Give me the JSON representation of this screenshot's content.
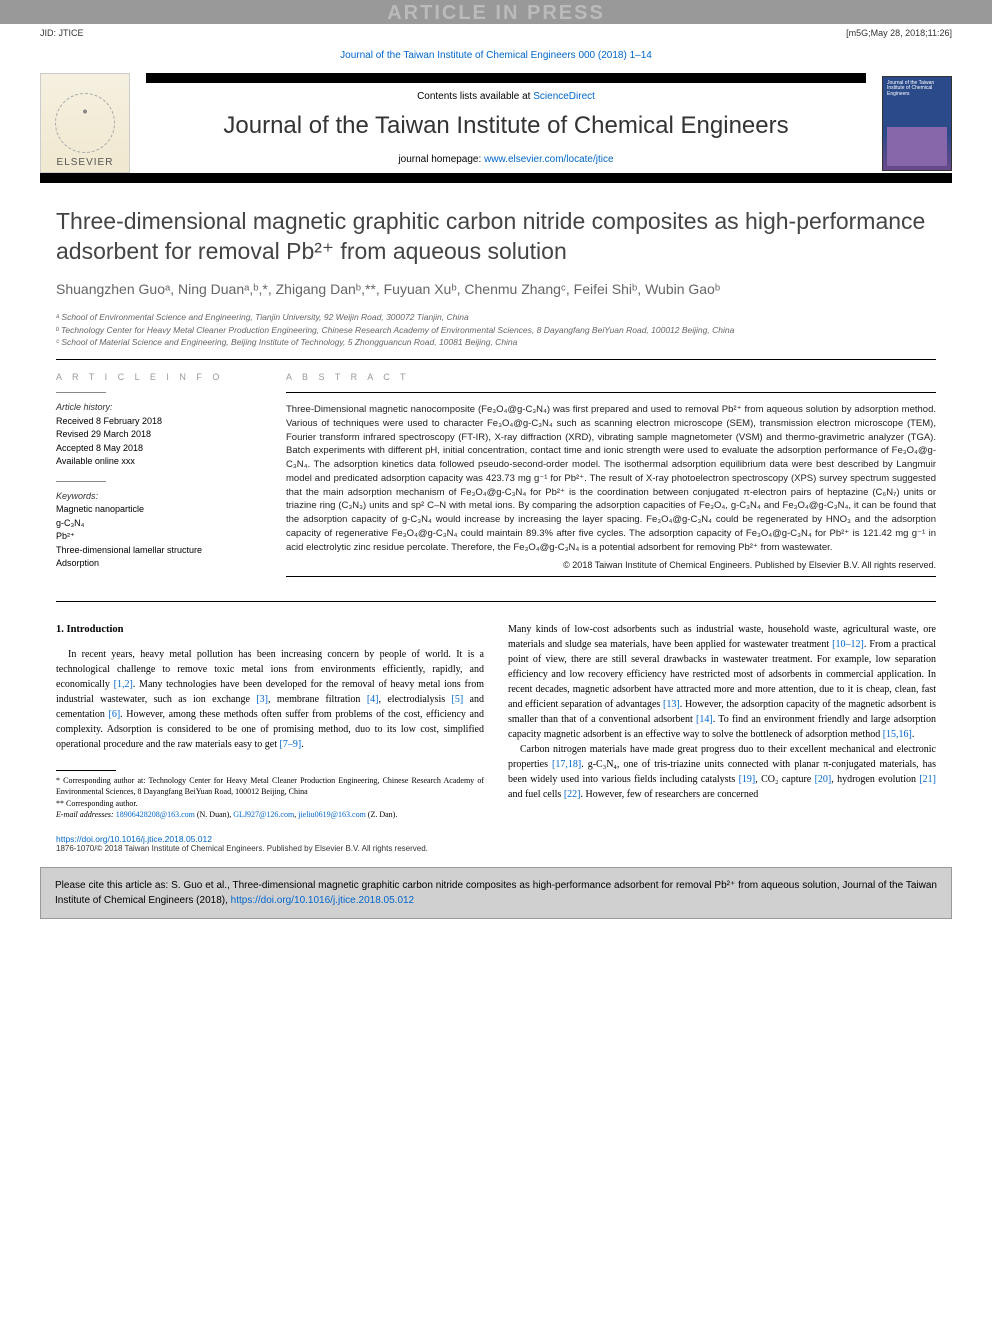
{
  "header": {
    "aip_banner": "ARTICLE IN PRESS",
    "jid": "JID: JTICE",
    "stamp": "[m5G;May 28, 2018;11:26]",
    "journal_ref": "Journal of the Taiwan Institute of Chemical Engineers 000 (2018) 1–14"
  },
  "masthead": {
    "contents_prefix": "Contents lists available at ",
    "contents_link": "ScienceDirect",
    "journal_name": "Journal of the Taiwan Institute of Chemical Engineers",
    "homepage_prefix": "journal homepage: ",
    "homepage_url": "www.elsevier.com/locate/jtice",
    "elsevier_label": "ELSEVIER"
  },
  "article": {
    "title_html": "Three-dimensional magnetic graphitic carbon nitride composites as high-performance adsorbent for removal Pb²⁺ from aqueous solution",
    "authors_html": "Shuangzhen Guoᵃ, Ning Duanᵃ,ᵇ,*, Zhigang Danᵇ,**, Fuyuan Xuᵇ, Chenmu Zhangᶜ, Feifei Shiᵇ, Wubin Gaoᵇ",
    "affiliations": {
      "a": "ᵃ School of Environmental Science and Engineering, Tianjin University, 92 Weijin Road, 300072 Tianjin, China",
      "b": "ᵇ Technology Center for Heavy Metal Cleaner Production Engineering, Chinese Research Academy of Environmental Sciences, 8 Dayangfang BeiYuan Road, 100012 Beijing, China",
      "c": "ᶜ School of Material Science and Engineering, Beijing Institute of Technology, 5 Zhongguancun Road, 10081 Beijing, China"
    }
  },
  "info": {
    "heading": "A R T I C L E   I N F O",
    "history_label": "Article history:",
    "history": {
      "received": "Received 8 February 2018",
      "revised": "Revised 29 March 2018",
      "accepted": "Accepted 8 May 2018",
      "online": "Available online xxx"
    },
    "keywords_label": "Keywords:",
    "keywords": [
      "Magnetic nanoparticle",
      "g-C₃N₄",
      "Pb²⁺",
      "Three-dimensional lamellar structure",
      "Adsorption"
    ]
  },
  "abstract": {
    "heading": "A B S T R A C T",
    "text": "Three-Dimensional magnetic nanocomposite (Fe₃O₄@g-C₃N₄) was first prepared and used to removal Pb²⁺ from aqueous solution by adsorption method. Various of techniques were used to character Fe₃O₄@g-C₃N₄ such as scanning electron microscope (SEM), transmission electron microscope (TEM), Fourier transform infrared spectroscopy (FT-IR), X-ray diffraction (XRD), vibrating sample magnetometer (VSM) and thermo-gravimetric analyzer (TGA). Batch experiments with different pH, initial concentration, contact time and ionic strength were used to evaluate the adsorption performance of Fe₃O₄@g-C₃N₄. The adsorption kinetics data followed pseudo-second-order model. The isothermal adsorption equilibrium data were best described by Langmuir model and predicated adsorption capacity was 423.73 mg g⁻¹ for Pb²⁺. The result of X-ray photoelectron spectroscopy (XPS) survey spectrum suggested that the main adsorption mechanism of Fe₃O₄@g-C₃N₄ for Pb²⁺ is the coordination between conjugated π-electron pairs of heptazine (C₆N₇) units or triazine ring (C₃N₃) units and sp² C–N with metal ions. By comparing the adsorption capacities of Fe₃O₄, g-C₃N₄ and Fe₃O₄@g-C₃N₄, it can be found that the adsorption capacity of g-C₃N₄ would increase by increasing the layer spacing. Fe₃O₄@g-C₃N₄ could be regenerated by HNO₃ and the adsorption capacity of regenerative Fe₃O₄@g-C₃N₄ could maintain 89.3% after five cycles. The adsorption capacity of Fe₃O₄@g-C₃N₄ for Pb²⁺ is 121.42 mg g⁻¹ in acid electrolytic zinc residue percolate. Therefore, the Fe₃O₄@g-C₃N₄ is a potential adsorbent for removing Pb²⁺ from wastewater.",
    "copyright": "© 2018 Taiwan Institute of Chemical Engineers. Published by Elsevier B.V. All rights reserved."
  },
  "body": {
    "section_number": "1.",
    "section_title": "Introduction",
    "col1_p1": "In recent years, heavy metal pollution has been increasing concern by people of world. It is a technological challenge to remove toxic metal ions from environments efficiently, rapidly, and economically [1,2]. Many technologies have been developed for the removal of heavy metal ions from industrial wastewater, such as ion exchange [3], membrane filtration [4], electrodialysis [5] and cementation [6]. However, among these methods often suffer from problems of the cost, efficiency and complexity. Adsorption is considered to be one of promising method, duo to its low cost, simplified operational procedure and the raw materials easy to get [7–9].",
    "col2_p1": "Many kinds of low-cost adsorbents such as industrial waste, household waste, agricultural waste, ore materials and sludge sea materials, have been applied for wastewater treatment [10–12]. From a practical point of view, there are still several drawbacks in wastewater treatment. For example, low separation efficiency and low recovery efficiency have restricted most of adsorbents in commercial application. In recent decades, magnetic adsorbent have attracted more and more attention, due to it is cheap, clean, fast and efficient separation of advantages [13]. However, the adsorption capacity of the magnetic adsorbent is smaller than that of a conventional adsorbent [14]. To find an environment friendly and large adsorption capacity magnetic adsorbent is an effective way to solve the bottleneck of adsorption method [15,16].",
    "col2_p2": "Carbon nitrogen materials have made great progress duo to their excellent mechanical and electronic properties [17,18]. g-C₃N₄, one of tris-triazine units connected with planar π-conjugated materials, has been widely used into various fields including catalysts [19], CO₂ capture [20], hydrogen evolution [21] and fuel cells [22]. However, few of researchers are concerned"
  },
  "footnotes": {
    "corr1": "* Corresponding author at: Technology Center for Heavy Metal Cleaner Production Engineering, Chinese Research Academy of Environmental Sciences, 8 Dayangfang BeiYuan Road, 100012 Beijing, China",
    "corr2": "** Corresponding author.",
    "email_label": "E-mail addresses:",
    "email1": "18906428208@163.com",
    "email1_who": "(N. Duan),",
    "email2": "GLJ927@126.com",
    "email2_sep": ",",
    "email3": "jieliu0619@163.com",
    "email3_who": "(Z. Dan)."
  },
  "footer": {
    "doi": "https://doi.org/10.1016/j.jtice.2018.05.012",
    "issn_line": "1876-1070/© 2018 Taiwan Institute of Chemical Engineers. Published by Elsevier B.V. All rights reserved."
  },
  "citebox": {
    "text_prefix": "Please cite this article as: S. Guo et al., Three-dimensional magnetic graphitic carbon nitride composites as high-performance adsorbent for removal Pb²⁺ from aqueous solution, Journal of the Taiwan Institute of Chemical Engineers (2018), ",
    "link": "https://doi.org/10.1016/j.jtice.2018.05.012"
  },
  "colors": {
    "link": "#0066cc",
    "grey_strip": "#999999",
    "cite_bg": "#d0d0d0"
  }
}
